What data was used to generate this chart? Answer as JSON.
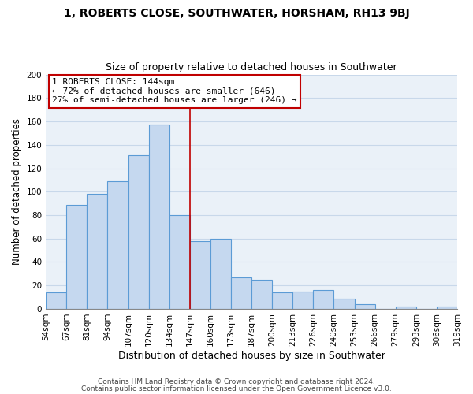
{
  "title": "1, ROBERTS CLOSE, SOUTHWATER, HORSHAM, RH13 9BJ",
  "subtitle": "Size of property relative to detached houses in Southwater",
  "xlabel": "Distribution of detached houses by size in Southwater",
  "ylabel": "Number of detached properties",
  "bar_labels": [
    "54sqm",
    "67sqm",
    "81sqm",
    "94sqm",
    "107sqm",
    "120sqm",
    "134sqm",
    "147sqm",
    "160sqm",
    "173sqm",
    "187sqm",
    "200sqm",
    "213sqm",
    "226sqm",
    "240sqm",
    "253sqm",
    "266sqm",
    "279sqm",
    "293sqm",
    "306sqm",
    "319sqm"
  ],
  "bar_values": [
    14,
    89,
    98,
    109,
    131,
    157,
    80,
    58,
    60,
    27,
    25,
    14,
    15,
    16,
    9,
    4,
    0,
    2,
    0,
    2
  ],
  "bar_color": "#c5d8ef",
  "bar_edge_color": "#5b9bd5",
  "vline_x_index": 7,
  "vline_color": "#c00000",
  "annotation_title": "1 ROBERTS CLOSE: 144sqm",
  "annotation_line1": "← 72% of detached houses are smaller (646)",
  "annotation_line2": "27% of semi-detached houses are larger (246) →",
  "annotation_box_facecolor": "#ffffff",
  "annotation_box_edgecolor": "#c00000",
  "ylim": [
    0,
    200
  ],
  "yticks": [
    0,
    20,
    40,
    60,
    80,
    100,
    120,
    140,
    160,
    180,
    200
  ],
  "grid_color": "#c8d8ea",
  "bg_color": "#eaf1f8",
  "footer1": "Contains HM Land Registry data © Crown copyright and database right 2024.",
  "footer2": "Contains public sector information licensed under the Open Government Licence v3.0.",
  "title_fontsize": 10,
  "subtitle_fontsize": 9,
  "xlabel_fontsize": 9,
  "ylabel_fontsize": 8.5,
  "tick_fontsize": 7.5,
  "annotation_fontsize": 8,
  "footer_fontsize": 6.5
}
